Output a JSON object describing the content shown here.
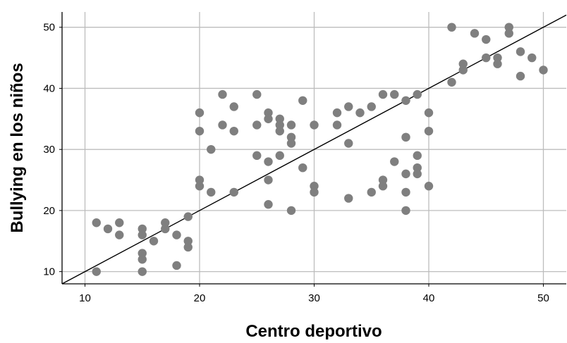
{
  "chart_data": {
    "type": "scatter",
    "title": "",
    "xlabel": "Centro deportivo",
    "ylabel": "Bullying en los niños",
    "xlim": [
      8,
      52
    ],
    "ylim": [
      8,
      52.5
    ],
    "xticks": [
      10,
      20,
      30,
      40,
      50
    ],
    "yticks": [
      10,
      20,
      30,
      40,
      50
    ],
    "grid": true,
    "fit_line": {
      "from": [
        8,
        8
      ],
      "to": [
        52,
        52
      ]
    },
    "colors": {
      "points": "#7f7f7f",
      "line": "#000000",
      "grid": "#bdbdbd",
      "axis": "#000000"
    },
    "points": [
      [
        11,
        18
      ],
      [
        11,
        10
      ],
      [
        12,
        17
      ],
      [
        13,
        18
      ],
      [
        13,
        16
      ],
      [
        15,
        17
      ],
      [
        15,
        16
      ],
      [
        15,
        13
      ],
      [
        15,
        12
      ],
      [
        15,
        10
      ],
      [
        16,
        15
      ],
      [
        17,
        18
      ],
      [
        17,
        17
      ],
      [
        18,
        16
      ],
      [
        18,
        11
      ],
      [
        19,
        19
      ],
      [
        19,
        15
      ],
      [
        19,
        14
      ],
      [
        20,
        36
      ],
      [
        20,
        33
      ],
      [
        20,
        25
      ],
      [
        20,
        24
      ],
      [
        21,
        30
      ],
      [
        21,
        23
      ],
      [
        22,
        39
      ],
      [
        22,
        34
      ],
      [
        23,
        37
      ],
      [
        23,
        33
      ],
      [
        23,
        23
      ],
      [
        25,
        39
      ],
      [
        25,
        34
      ],
      [
        25,
        29
      ],
      [
        26,
        36
      ],
      [
        26,
        35
      ],
      [
        26,
        28
      ],
      [
        26,
        25
      ],
      [
        26,
        21
      ],
      [
        27,
        35
      ],
      [
        27,
        34
      ],
      [
        27,
        33
      ],
      [
        27,
        29
      ],
      [
        28,
        34
      ],
      [
        28,
        32
      ],
      [
        28,
        31
      ],
      [
        28,
        20
      ],
      [
        29,
        38
      ],
      [
        29,
        27
      ],
      [
        30,
        34
      ],
      [
        30,
        24
      ],
      [
        30,
        23
      ],
      [
        32,
        36
      ],
      [
        32,
        34
      ],
      [
        33,
        37
      ],
      [
        33,
        31
      ],
      [
        33,
        22
      ],
      [
        34,
        36
      ],
      [
        35,
        37
      ],
      [
        35,
        23
      ],
      [
        36,
        39
      ],
      [
        36,
        25
      ],
      [
        36,
        24
      ],
      [
        37,
        39
      ],
      [
        37,
        28
      ],
      [
        38,
        38
      ],
      [
        38,
        32
      ],
      [
        38,
        26
      ],
      [
        38,
        23
      ],
      [
        38,
        20
      ],
      [
        39,
        39
      ],
      [
        39,
        29
      ],
      [
        39,
        27
      ],
      [
        39,
        26
      ],
      [
        40,
        36
      ],
      [
        40,
        33
      ],
      [
        40,
        24
      ],
      [
        42,
        50
      ],
      [
        42,
        41
      ],
      [
        43,
        44
      ],
      [
        43,
        43
      ],
      [
        44,
        49
      ],
      [
        45,
        48
      ],
      [
        45,
        45
      ],
      [
        46,
        45
      ],
      [
        46,
        44
      ],
      [
        47,
        50
      ],
      [
        47,
        49
      ],
      [
        48,
        46
      ],
      [
        48,
        42
      ],
      [
        49,
        45
      ],
      [
        50,
        43
      ]
    ]
  }
}
